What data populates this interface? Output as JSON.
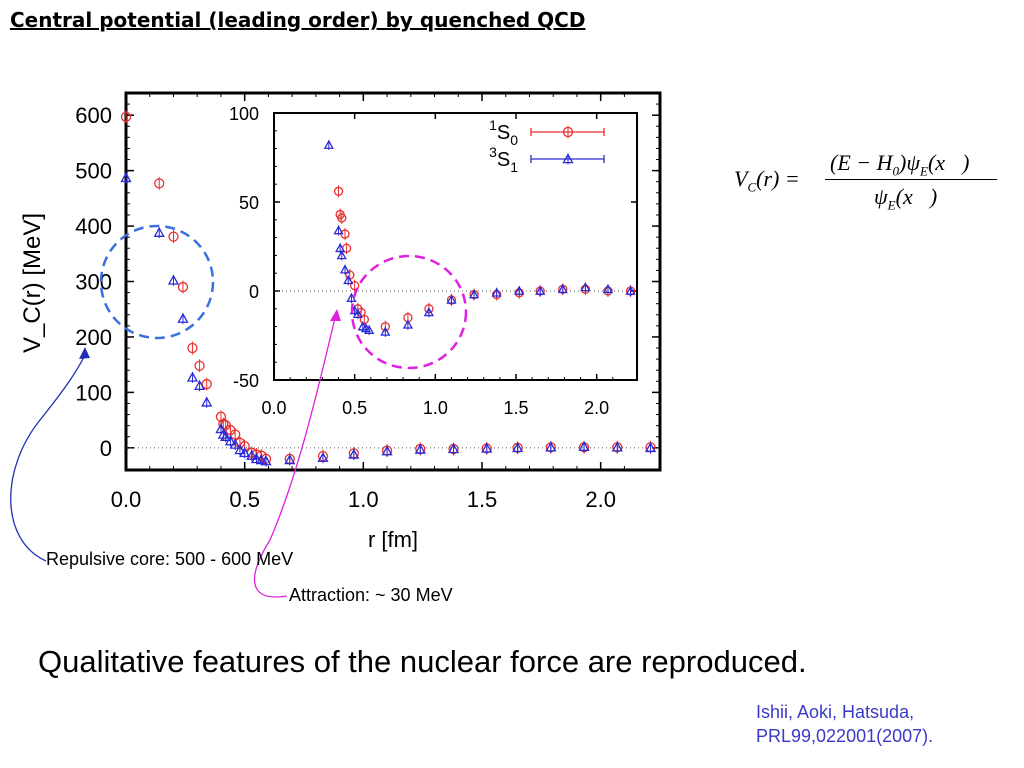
{
  "slide": {
    "title": "Central potential (leading order) by quenched QCD",
    "formula": {
      "lhs": "V_C(r) =",
      "numerator": "(E − H₀)ψ_E(x⃗)",
      "denominator": "ψ_E(x⃗)"
    },
    "conclusion": "Qualitative features of the nuclear force are reproduced.",
    "citation": [
      "Ishii, Aoki, Hatsuda,",
      "PRL99,022001(2007)."
    ],
    "annotations": {
      "core": "Repulsive core: 500 - 600 MeV",
      "attraction": "Attraction: ~ 30 MeV"
    }
  },
  "colors": {
    "series_1S0": "#e8302e",
    "series_3S1": "#2a2ad8",
    "circle_core": "#3a6fe0",
    "circle_attraction": "#e020e0",
    "arrow_core": "#2030b0",
    "arrow_attraction": "#e020e0"
  },
  "chart_data": [
    {
      "type": "scatter",
      "xlabel": "r [fm]",
      "ylabel": "V_C(r) [MeV]",
      "xlim": [
        0,
        2.25
      ],
      "ylim": [
        -40,
        640
      ],
      "xticks": [
        "0.0",
        "0.5",
        "1.0",
        "1.5",
        "2.0"
      ],
      "yticks": [
        "0",
        "100",
        "200",
        "300",
        "400",
        "500",
        "600"
      ],
      "series": [
        {
          "name": "1S0",
          "points": [
            [
              0.0,
              597
            ],
            [
              0.14,
              477
            ],
            [
              0.2,
              381
            ],
            [
              0.24,
              290
            ],
            [
              0.28,
              180
            ],
            [
              0.31,
              148
            ],
            [
              0.34,
              115
            ],
            [
              0.4,
              56
            ],
            [
              0.41,
              43
            ],
            [
              0.42,
              41
            ],
            [
              0.44,
              32
            ],
            [
              0.46,
              24
            ],
            [
              0.48,
              9
            ],
            [
              0.5,
              3
            ],
            [
              0.53,
              -9
            ],
            [
              0.55,
              -12
            ],
            [
              0.57,
              -14
            ],
            [
              0.59,
              -20
            ],
            [
              0.69,
              -20
            ],
            [
              0.83,
              -15
            ],
            [
              0.96,
              -10
            ],
            [
              1.1,
              -5
            ],
            [
              1.24,
              -2
            ],
            [
              1.38,
              -2
            ],
            [
              1.52,
              -1
            ],
            [
              1.65,
              0
            ],
            [
              1.79,
              1
            ],
            [
              1.93,
              1
            ],
            [
              2.07,
              1
            ],
            [
              2.21,
              1
            ]
          ]
        },
        {
          "name": "3S1",
          "points": [
            [
              0.0,
              487
            ],
            [
              0.14,
              388
            ],
            [
              0.2,
              302
            ],
            [
              0.24,
              233
            ],
            [
              0.28,
              127
            ],
            [
              0.31,
              112
            ],
            [
              0.34,
              82
            ],
            [
              0.4,
              34
            ],
            [
              0.41,
              24
            ],
            [
              0.42,
              20
            ],
            [
              0.44,
              12
            ],
            [
              0.46,
              6
            ],
            [
              0.48,
              -4
            ],
            [
              0.5,
              -9
            ],
            [
              0.53,
              -14
            ],
            [
              0.55,
              -20
            ],
            [
              0.57,
              -22
            ],
            [
              0.59,
              -24
            ],
            [
              0.69,
              -22
            ],
            [
              0.83,
              -18
            ],
            [
              0.96,
              -12
            ],
            [
              1.1,
              -6
            ],
            [
              1.24,
              -3
            ],
            [
              1.38,
              -2
            ],
            [
              1.52,
              -1
            ],
            [
              1.65,
              0
            ],
            [
              1.79,
              1
            ],
            [
              1.93,
              2
            ],
            [
              2.07,
              1
            ],
            [
              2.21,
              0
            ]
          ]
        }
      ]
    },
    {
      "type": "scatter",
      "inset": true,
      "xlim": [
        0,
        2.25
      ],
      "ylim": [
        -50,
        100
      ],
      "xticks": [
        "0.0",
        "0.5",
        "1.0",
        "1.5",
        "2.0"
      ],
      "yticks": [
        "-50",
        "0",
        "50",
        "100"
      ],
      "legend": [
        "1S0",
        "3S1"
      ],
      "legend_position": "top-right",
      "series": [
        {
          "name": "1S0",
          "points": [
            [
              0.4,
              56
            ],
            [
              0.41,
              43
            ],
            [
              0.42,
              41
            ],
            [
              0.44,
              32
            ],
            [
              0.45,
              24
            ],
            [
              0.47,
              9
            ],
            [
              0.5,
              3
            ],
            [
              0.52,
              -10
            ],
            [
              0.54,
              -12
            ],
            [
              0.56,
              -16
            ],
            [
              0.69,
              -20
            ],
            [
              0.83,
              -15
            ],
            [
              0.96,
              -10
            ],
            [
              1.1,
              -5
            ],
            [
              1.24,
              -2
            ],
            [
              1.38,
              -2
            ],
            [
              1.52,
              -1
            ],
            [
              1.65,
              0
            ],
            [
              1.79,
              1
            ],
            [
              1.93,
              1
            ],
            [
              2.07,
              0
            ],
            [
              2.21,
              0
            ]
          ]
        },
        {
          "name": "3S1",
          "points": [
            [
              0.34,
              82
            ],
            [
              0.4,
              34
            ],
            [
              0.41,
              24
            ],
            [
              0.42,
              20
            ],
            [
              0.44,
              12
            ],
            [
              0.46,
              6
            ],
            [
              0.48,
              -4
            ],
            [
              0.5,
              -11
            ],
            [
              0.52,
              -13
            ],
            [
              0.55,
              -20
            ],
            [
              0.57,
              -21
            ],
            [
              0.59,
              -22
            ],
            [
              0.69,
              -23
            ],
            [
              0.83,
              -19
            ],
            [
              0.96,
              -12
            ],
            [
              1.1,
              -5
            ],
            [
              1.24,
              -2
            ],
            [
              1.38,
              -1
            ],
            [
              1.52,
              0
            ],
            [
              1.65,
              0
            ],
            [
              1.79,
              1
            ],
            [
              1.93,
              2
            ],
            [
              2.07,
              1
            ],
            [
              2.21,
              0
            ]
          ]
        }
      ]
    }
  ]
}
